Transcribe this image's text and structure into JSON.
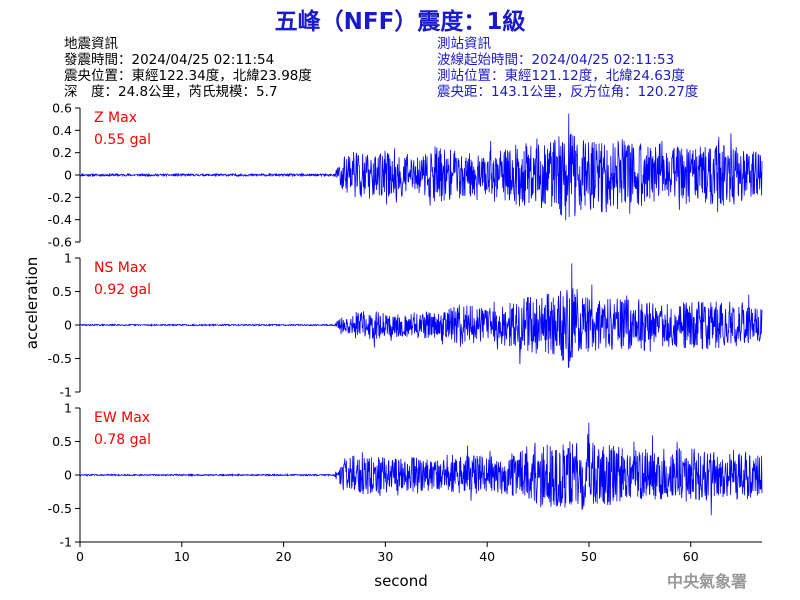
{
  "title": "五峰（NFF）震度：1級",
  "quake_info": {
    "heading": "地震資訊",
    "origin_time": "發震時間：2024/04/25 02:11:54",
    "epicenter": "震央位置：東經122.34度，北緯23.98度",
    "depth_magnitude": "深　度：24.8公里，芮氏規模：5.7"
  },
  "station_info": {
    "heading": "測站資訊",
    "onset_time": "波線起始時間：2024/04/25 02:11:53",
    "station_location": "測站位置：東經121.12度，北緯24.63度",
    "distance": "震央距：143.1公里，反方位角：120.27度"
  },
  "credit": "中央氣象署",
  "colors": {
    "title": "#1a1acc",
    "trace": "#0000ff",
    "label": "#ff0000",
    "station_text": "#1a1acc"
  },
  "chart_data": [
    {
      "type": "line",
      "panel_label": "Z Max",
      "max_label": "0.55 gal",
      "peak": 0.55,
      "ylim": [
        -0.6,
        0.6
      ],
      "yticks": [
        "0.6",
        "0.4",
        "0.2",
        "0",
        "-0.2",
        "-0.4",
        "-0.6"
      ],
      "xlim": [
        0,
        67
      ],
      "onset": 25.3,
      "envelope": [
        [
          0,
          0.01
        ],
        [
          25,
          0.01
        ],
        [
          25.5,
          0.12
        ],
        [
          26,
          0.2
        ],
        [
          27,
          0.27
        ],
        [
          28,
          0.18
        ],
        [
          30,
          0.22
        ],
        [
          33,
          0.15
        ],
        [
          35,
          0.25
        ],
        [
          38,
          0.2
        ],
        [
          40,
          0.17
        ],
        [
          43,
          0.28
        ],
        [
          46,
          0.3
        ],
        [
          47,
          0.35
        ],
        [
          48,
          0.4
        ],
        [
          49,
          0.32
        ],
        [
          52,
          0.35
        ],
        [
          55,
          0.28
        ],
        [
          58,
          0.25
        ],
        [
          62,
          0.27
        ],
        [
          64,
          0.28
        ],
        [
          66,
          0.22
        ],
        [
          67,
          0.2
        ]
      ],
      "seed": 11
    },
    {
      "type": "line",
      "panel_label": "NS Max",
      "max_label": "0.92 gal",
      "peak": 0.92,
      "ylim": [
        -1,
        1
      ],
      "yticks": [
        "1",
        "0.5",
        "0",
        "-0.5",
        "-1"
      ],
      "xlim": [
        0,
        67
      ],
      "onset": 25.4,
      "envelope": [
        [
          0,
          0.01
        ],
        [
          25,
          0.01
        ],
        [
          25.5,
          0.1
        ],
        [
          27,
          0.2
        ],
        [
          29,
          0.22
        ],
        [
          31,
          0.18
        ],
        [
          34,
          0.2
        ],
        [
          38,
          0.3
        ],
        [
          40,
          0.25
        ],
        [
          43,
          0.4
        ],
        [
          45,
          0.45
        ],
        [
          47,
          0.55
        ],
        [
          48,
          0.75
        ],
        [
          49,
          0.5
        ],
        [
          51,
          0.38
        ],
        [
          53,
          0.42
        ],
        [
          55,
          0.35
        ],
        [
          58,
          0.32
        ],
        [
          61,
          0.38
        ],
        [
          63,
          0.35
        ],
        [
          66,
          0.28
        ],
        [
          67,
          0.25
        ]
      ],
      "seed": 29
    },
    {
      "type": "line",
      "panel_label": "EW Max",
      "max_label": "0.78 gal",
      "peak": 0.78,
      "ylim": [
        -1,
        1
      ],
      "yticks": [
        "1",
        "0.5",
        "0",
        "-0.5",
        "-1"
      ],
      "xlim": [
        0,
        67
      ],
      "onset": 25.3,
      "envelope": [
        [
          0,
          0.01
        ],
        [
          25,
          0.01
        ],
        [
          25.5,
          0.2
        ],
        [
          27,
          0.32
        ],
        [
          29,
          0.3
        ],
        [
          31,
          0.25
        ],
        [
          33,
          0.28
        ],
        [
          35,
          0.22
        ],
        [
          38,
          0.3
        ],
        [
          41,
          0.28
        ],
        [
          43,
          0.35
        ],
        [
          45,
          0.45
        ],
        [
          47,
          0.5
        ],
        [
          48,
          0.55
        ],
        [
          50,
          0.5
        ],
        [
          53,
          0.45
        ],
        [
          56,
          0.4
        ],
        [
          60,
          0.42
        ],
        [
          64,
          0.35
        ],
        [
          66,
          0.38
        ],
        [
          67,
          0.3
        ]
      ],
      "seed": 47
    }
  ],
  "axes": {
    "xlabel": "second",
    "ylabel": "acceleration",
    "xticks": [
      "0",
      "10",
      "20",
      "30",
      "40",
      "50",
      "60"
    ]
  }
}
